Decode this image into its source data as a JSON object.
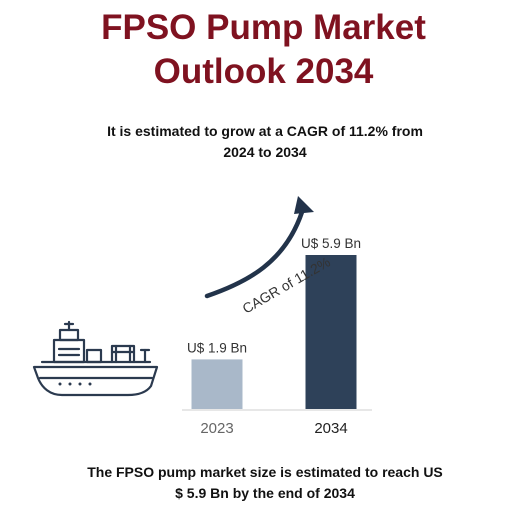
{
  "title_line1": "FPSO Pump Market",
  "title_line2": "Outlook 2034",
  "subtitle_line1": "It is estimated to grow at a CAGR of 11.2% from",
  "subtitle_line2": "2024 to 2034",
  "footer_line1": "The FPSO pump market size is estimated to reach US",
  "footer_line2": "$ 5.9 Bn by the end of 2034",
  "cagr_label": "CAGR of 11.2%",
  "icons": {
    "ship": "fpso-ship-icon",
    "arrow": "growth-arrow-icon"
  },
  "colors": {
    "title": "#7f1220",
    "bar_2023": "#a9b8c9",
    "bar_2034": "#2e4159",
    "arrow": "#22334a",
    "ship": "#2b3a4f"
  },
  "chart_data": {
    "type": "bar",
    "categories": [
      "2023",
      "2034"
    ],
    "values": [
      1.9,
      5.9
    ],
    "data_labels": [
      "U$ 1.9 Bn",
      "U$ 5.9 Bn"
    ],
    "unit": "Bn",
    "ylim": [
      0,
      5.9
    ],
    "grid": false,
    "legend": "none"
  }
}
